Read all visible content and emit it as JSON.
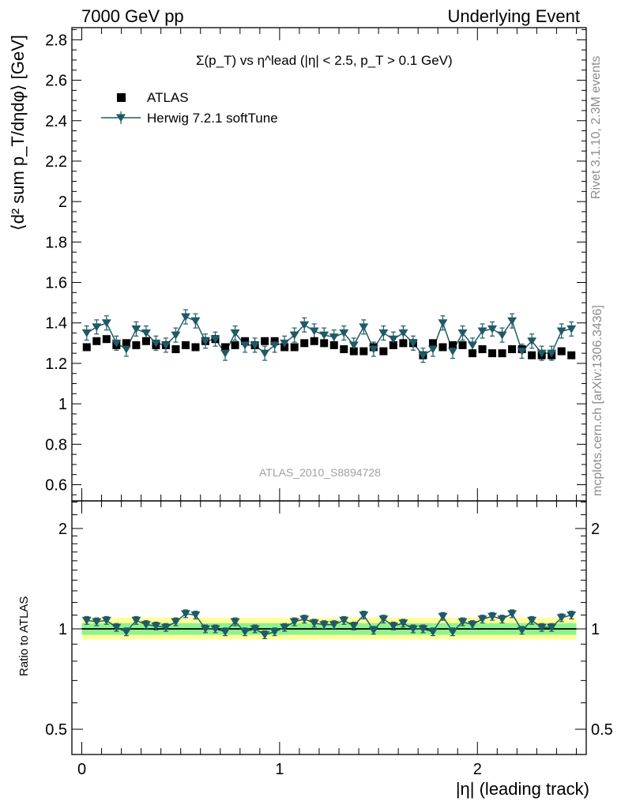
{
  "header": {
    "left": "7000 GeV pp",
    "right": "Underlying Event"
  },
  "side_labels": {
    "rivet": "Rivet 3.1.10,  2.3M events",
    "mcplots": "mcplots.cern.ch [arXiv:1306.3436]"
  },
  "watermark": "ATLAS_2010_S8894728",
  "colors": {
    "mc": "#1f5a66",
    "data": "#000000",
    "band_inner": "#8ef28e",
    "band_outer": "#ffff99"
  },
  "chart_data": [
    {
      "type": "scatter",
      "title": "Σ(p_T) vs η^lead (|η| < 2.5, p_T > 0.1 GeV)",
      "ylabel": "⟨d² sum p_T/dηdφ⟩ [GeV]",
      "xlim": [
        -0.05,
        2.55
      ],
      "ylim": [
        0.52,
        2.86
      ],
      "yticks": [
        "0.6",
        "0.8",
        "1",
        "1.2",
        "1.4",
        "1.6",
        "1.8",
        "2",
        "2.2",
        "2.4",
        "2.6",
        "2.8"
      ],
      "legend": {
        "position": "top-left",
        "entries": [
          "ATLAS",
          "Herwig 7.2.1 softTune"
        ]
      },
      "series": [
        {
          "name": "ATLAS",
          "marker": "square",
          "x": [
            0.025,
            0.075,
            0.125,
            0.175,
            0.225,
            0.275,
            0.325,
            0.375,
            0.425,
            0.475,
            0.525,
            0.575,
            0.625,
            0.675,
            0.725,
            0.775,
            0.825,
            0.875,
            0.925,
            0.975,
            1.025,
            1.075,
            1.125,
            1.175,
            1.225,
            1.275,
            1.325,
            1.375,
            1.425,
            1.475,
            1.525,
            1.575,
            1.625,
            1.675,
            1.725,
            1.775,
            1.825,
            1.875,
            1.925,
            1.975,
            2.025,
            2.075,
            2.125,
            2.175,
            2.225,
            2.275,
            2.325,
            2.375,
            2.425,
            2.475
          ],
          "y": [
            1.28,
            1.31,
            1.32,
            1.29,
            1.3,
            1.29,
            1.31,
            1.29,
            1.29,
            1.27,
            1.29,
            1.28,
            1.31,
            1.32,
            1.28,
            1.29,
            1.31,
            1.29,
            1.31,
            1.31,
            1.28,
            1.28,
            1.3,
            1.31,
            1.3,
            1.29,
            1.27,
            1.26,
            1.26,
            1.28,
            1.26,
            1.29,
            1.3,
            1.3,
            1.24,
            1.3,
            1.28,
            1.29,
            1.29,
            1.25,
            1.27,
            1.25,
            1.25,
            1.27,
            1.27,
            1.24,
            1.24,
            1.24,
            1.26,
            1.24
          ]
        },
        {
          "name": "Herwig 7.2.1 softTune",
          "marker": "triangle-down",
          "x": [
            0.025,
            0.075,
            0.125,
            0.175,
            0.225,
            0.275,
            0.325,
            0.375,
            0.425,
            0.475,
            0.525,
            0.575,
            0.625,
            0.675,
            0.725,
            0.775,
            0.825,
            0.875,
            0.925,
            0.975,
            1.025,
            1.075,
            1.125,
            1.175,
            1.225,
            1.275,
            1.325,
            1.375,
            1.425,
            1.475,
            1.525,
            1.575,
            1.625,
            1.675,
            1.725,
            1.775,
            1.825,
            1.875,
            1.925,
            1.975,
            2.025,
            2.075,
            2.125,
            2.175,
            2.225,
            2.275,
            2.325,
            2.375,
            2.425,
            2.475
          ],
          "y": [
            1.35,
            1.38,
            1.4,
            1.3,
            1.27,
            1.37,
            1.35,
            1.3,
            1.29,
            1.34,
            1.43,
            1.41,
            1.31,
            1.32,
            1.25,
            1.35,
            1.29,
            1.29,
            1.25,
            1.29,
            1.3,
            1.34,
            1.39,
            1.36,
            1.34,
            1.33,
            1.35,
            1.29,
            1.38,
            1.27,
            1.35,
            1.32,
            1.35,
            1.3,
            1.24,
            1.27,
            1.4,
            1.26,
            1.35,
            1.29,
            1.36,
            1.37,
            1.34,
            1.41,
            1.26,
            1.31,
            1.25,
            1.25,
            1.36,
            1.37
          ],
          "err": [
            0.035,
            0.035,
            0.035,
            0.035,
            0.035,
            0.035,
            0.035,
            0.035,
            0.035,
            0.035,
            0.035,
            0.035,
            0.035,
            0.035,
            0.035,
            0.035,
            0.035,
            0.035,
            0.035,
            0.035,
            0.035,
            0.035,
            0.035,
            0.035,
            0.035,
            0.035,
            0.035,
            0.035,
            0.035,
            0.035,
            0.035,
            0.035,
            0.035,
            0.035,
            0.035,
            0.035,
            0.035,
            0.035,
            0.035,
            0.035,
            0.035,
            0.035,
            0.035,
            0.035,
            0.035,
            0.035,
            0.035,
            0.035,
            0.035,
            0.035
          ]
        }
      ]
    },
    {
      "type": "scatter",
      "xlabel": "|η| (leading track)",
      "ylabel": "Ratio to ATLAS",
      "xlim": [
        -0.05,
        2.55
      ],
      "ylim": [
        0.42,
        2.42
      ],
      "log_y": true,
      "xticks": [
        "0",
        "1",
        "2"
      ],
      "yticks": [
        "0.5",
        "1",
        "2"
      ],
      "bands": {
        "inner": [
          0.96,
          1.04
        ],
        "outer": [
          0.93,
          1.08
        ]
      },
      "series": [
        {
          "name": "Herwig 7.2.1 softTune",
          "marker": "triangle-down",
          "x": [
            0.025,
            0.075,
            0.125,
            0.175,
            0.225,
            0.275,
            0.325,
            0.375,
            0.425,
            0.475,
            0.525,
            0.575,
            0.625,
            0.675,
            0.725,
            0.775,
            0.825,
            0.875,
            0.925,
            0.975,
            1.025,
            1.075,
            1.125,
            1.175,
            1.225,
            1.275,
            1.325,
            1.375,
            1.425,
            1.475,
            1.525,
            1.575,
            1.625,
            1.675,
            1.725,
            1.775,
            1.825,
            1.875,
            1.925,
            1.975,
            2.025,
            2.075,
            2.125,
            2.175,
            2.225,
            2.275,
            2.325,
            2.375,
            2.425,
            2.475
          ],
          "y": [
            1.06,
            1.05,
            1.06,
            1.01,
            0.98,
            1.06,
            1.03,
            1.02,
            1.01,
            1.05,
            1.11,
            1.1,
            1.0,
            1.0,
            0.98,
            1.05,
            0.98,
            1.0,
            0.96,
            0.98,
            1.01,
            1.05,
            1.07,
            1.04,
            1.03,
            1.03,
            1.06,
            1.02,
            1.1,
            0.99,
            1.07,
            1.02,
            1.04,
            1.0,
            1.0,
            0.98,
            1.09,
            0.98,
            1.05,
            1.03,
            1.07,
            1.09,
            1.07,
            1.11,
            0.99,
            1.06,
            1.01,
            1.01,
            1.08,
            1.1
          ]
        }
      ]
    }
  ]
}
